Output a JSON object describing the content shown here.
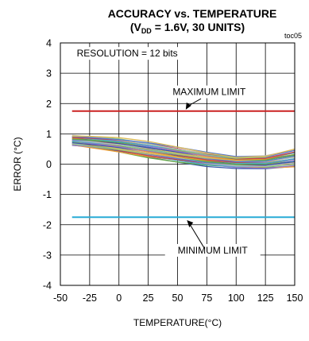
{
  "chart_data": {
    "type": "line",
    "title": "ACCURACY vs. TEMPERATURE",
    "subtitle": {
      "pre": "(V",
      "sub": "DD",
      "post": " = 1.6V, 30 UNITS)"
    },
    "figure_code": "toc05",
    "xlabel": "TEMPERATURE(°C)",
    "ylabel": "ERROR (°C)",
    "xlim": [
      -50,
      150
    ],
    "ylim": [
      -4,
      4
    ],
    "xticks": [
      -50,
      -25,
      0,
      25,
      50,
      75,
      100,
      125,
      150
    ],
    "yticks": [
      -4,
      -3,
      -2,
      -1,
      0,
      1,
      2,
      3,
      4
    ],
    "grid": true,
    "annotations": {
      "resolution": "RESOLUTION  = 12 bits",
      "max_label": "MAXIMUM  LIMIT",
      "min_label": "MINIMUM  LIMIT"
    },
    "limits": [
      {
        "value": 1.75,
        "color": "#cc2222",
        "x_range": [
          -40,
          150
        ]
      },
      {
        "value": -1.75,
        "color": "#29abd6",
        "x_range": [
          -40,
          150
        ]
      }
    ],
    "series_x": [
      -40,
      -25,
      0,
      25,
      50,
      75,
      100,
      125,
      150
    ],
    "envelope": {
      "upper": [
        0.95,
        0.92,
        0.85,
        0.72,
        0.55,
        0.38,
        0.25,
        0.28,
        0.5
      ],
      "lower": [
        0.62,
        0.55,
        0.4,
        0.22,
        0.08,
        -0.05,
        -0.12,
        -0.15,
        -0.1
      ]
    },
    "series_count": 30,
    "colors": [
      "#3355aa",
      "#66aa44",
      "#ee9933",
      "#9977cc",
      "#44aacc",
      "#cc4444",
      "#88cc88",
      "#bbbbbb",
      "#5577cc",
      "#ddbb55"
    ]
  }
}
